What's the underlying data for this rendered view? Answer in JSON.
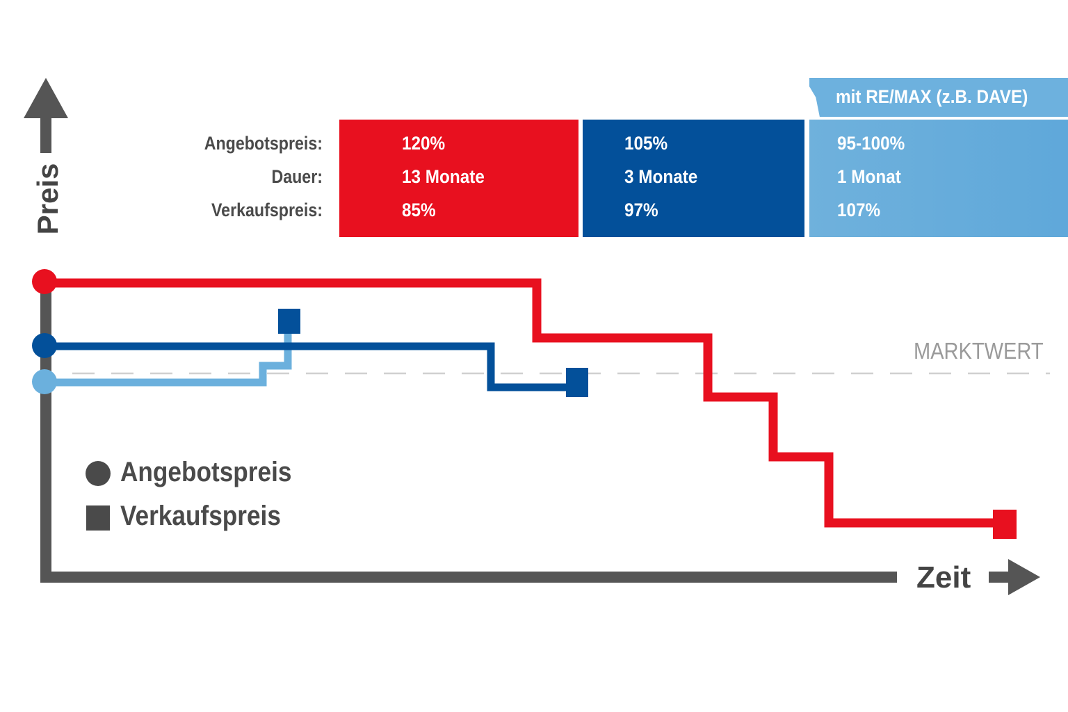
{
  "rows": {
    "angebotspreis": "Angebotspreis:",
    "dauer": "Dauer:",
    "verkaufspreis": "Verkaufspreis:"
  },
  "panels": [
    {
      "angebotspreis": "120%",
      "dauer": "13 Monate",
      "verkaufspreis": "85%"
    },
    {
      "angebotspreis": "105%",
      "dauer": "3 Monate",
      "verkaufspreis": "97%"
    },
    {
      "angebotspreis": "95-100%",
      "dauer": "1 Monat",
      "verkaufspreis": "107%"
    }
  ],
  "remax_label": "mit RE/MAX (z.B. DAVE)",
  "axes": {
    "y": "Preis",
    "x": "Zeit"
  },
  "marktwert_label": "MARKTWERT",
  "legend": {
    "circle": "Angebotspreis",
    "square": "Verkaufspreis"
  },
  "colors": {
    "red": "#e8101f",
    "blue": "#03509a",
    "lightblue": "#6bb0dd",
    "axis": "#555555",
    "marktwert": "#d0d0d0"
  },
  "chart_data": {
    "type": "line",
    "title": "",
    "xlabel": "Zeit",
    "ylabel": "Preis",
    "reference_line": {
      "label": "MARKTWERT",
      "style": "dashed"
    },
    "series": [
      {
        "color": "red",
        "angebotspreis": "120%",
        "dauer": "13 Monate",
        "verkaufspreis": "85%"
      },
      {
        "color": "blue",
        "angebotspreis": "105%",
        "dauer": "3 Monate",
        "verkaufspreis": "97%"
      },
      {
        "color": "lightblue",
        "angebotspreis": "95-100%",
        "dauer": "1 Monat",
        "verkaufspreis": "107%"
      }
    ]
  }
}
